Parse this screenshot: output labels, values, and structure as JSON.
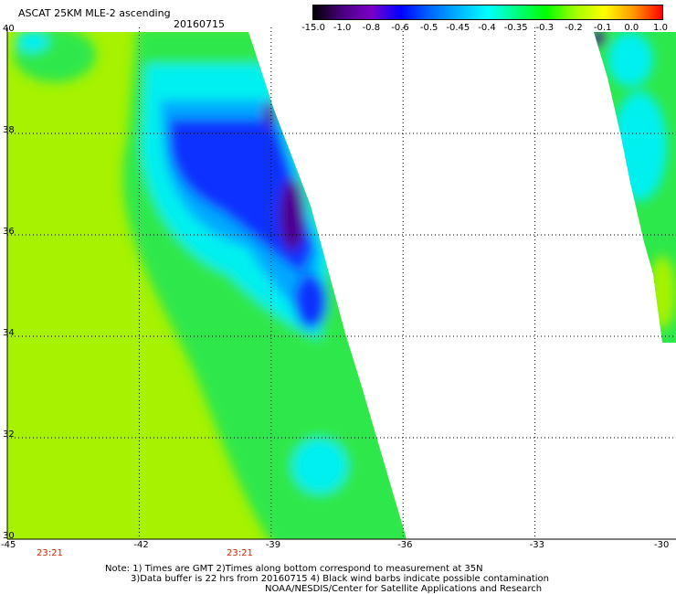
{
  "header": {
    "title": "ASCAT 25KM MLE-2 ascending",
    "date": "20160715"
  },
  "colorbar": {
    "labels": [
      "-15.0",
      "-1.0",
      "-0.8",
      "-0.6",
      "-0.5",
      "-0.45",
      "-0.4",
      "-0.35",
      "-0.3",
      "-0.2",
      "-0.1",
      "0.0",
      "1.0"
    ],
    "colors": [
      "#000000",
      "#4a0080",
      "#7a00c8",
      "#0000ff",
      "#0066ff",
      "#00b4ff",
      "#00ffff",
      "#00ff80",
      "#00ff00",
      "#a0ff00",
      "#ffff00",
      "#ff9900",
      "#ff0000"
    ]
  },
  "map": {
    "lat_labels": [
      "40",
      "38",
      "36",
      "34",
      "32",
      "30"
    ],
    "lon_labels": [
      "-45",
      "-42",
      "-39",
      "-36",
      "-33",
      "-30"
    ],
    "lat_range": [
      30,
      40
    ],
    "lon_range": [
      -45,
      -30
    ],
    "colors": {
      "lime": "#a6f200",
      "green": "#2de84b",
      "cyan": "#00f0f0",
      "sky": "#00a8ff",
      "blue": "#1030ff",
      "violet": "#500090"
    },
    "times": [
      "23:21",
      "23:21"
    ]
  },
  "notes": {
    "line1": "Note: 1) Times are GMT 2)Times along bottom correspond to measurement at 35N",
    "line2": "3)Data buffer is 22 hrs from 20160715 4) Black wind barbs indicate possible contamination",
    "line3": "NOAA/NESDIS/Center for Satellite Applications and Research"
  }
}
